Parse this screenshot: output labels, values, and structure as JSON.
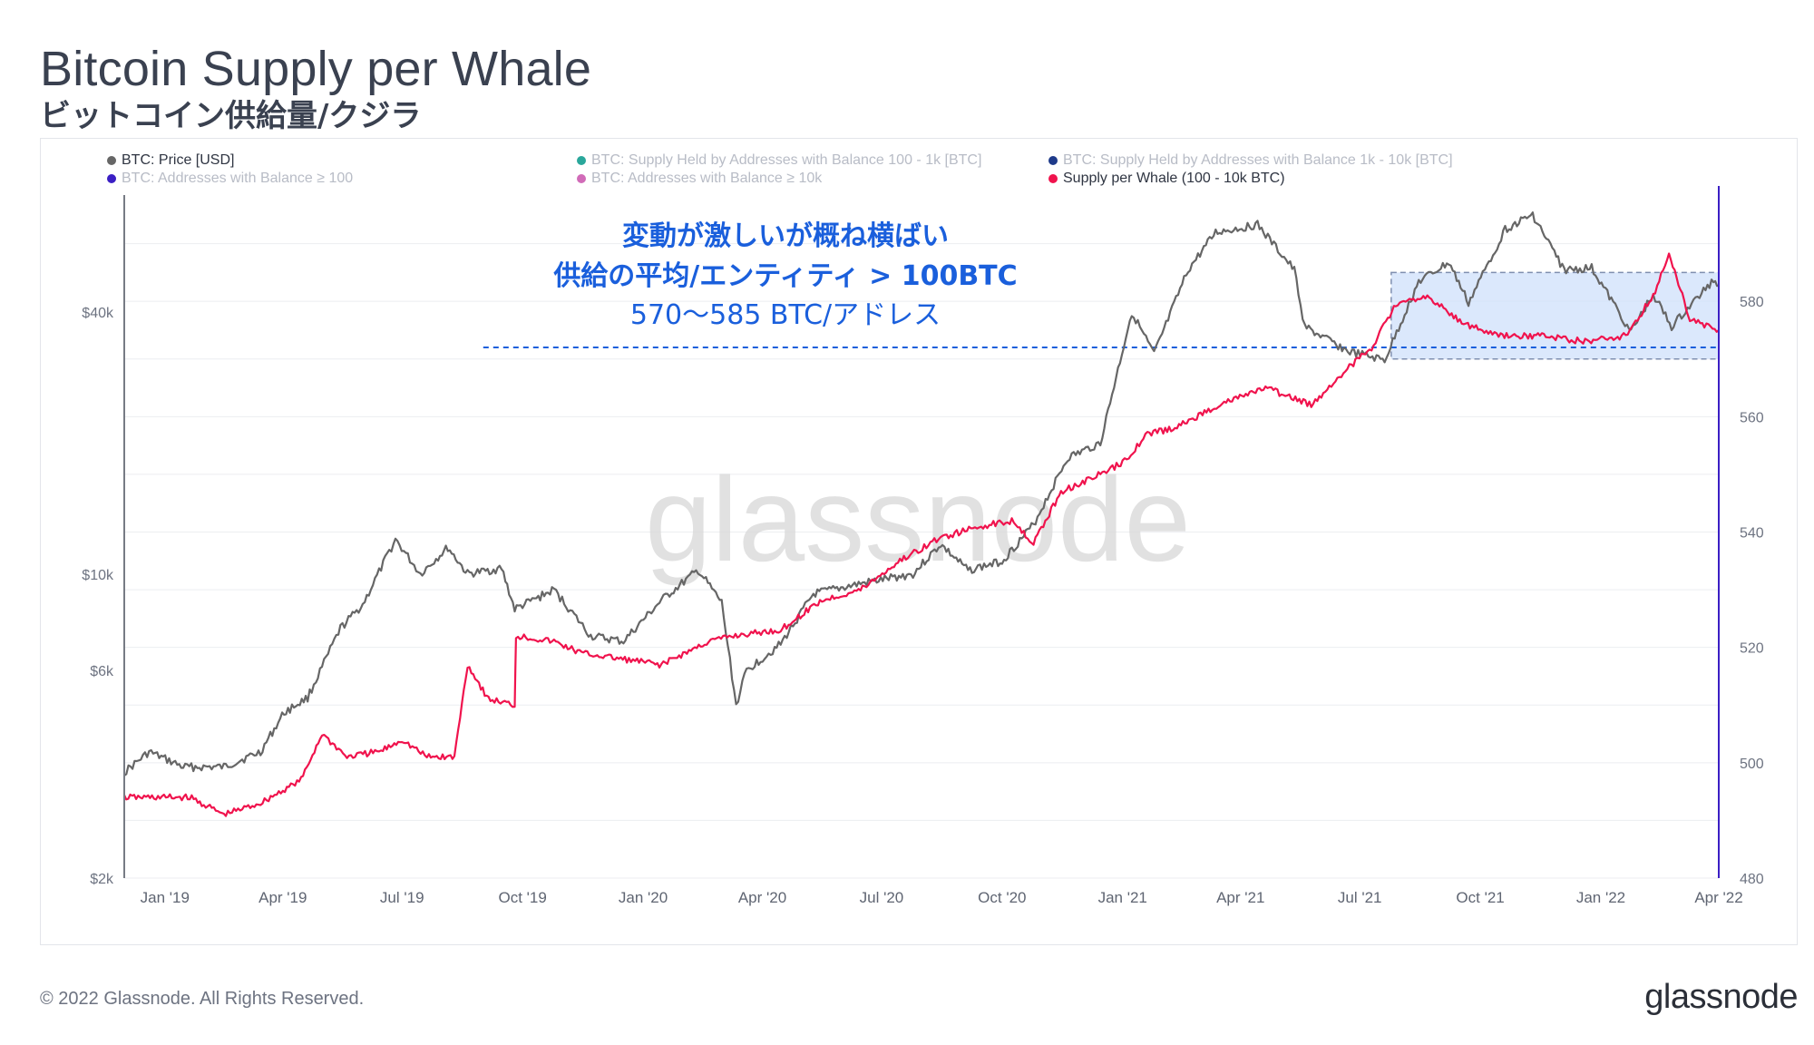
{
  "header": {
    "title": "Bitcoin Supply per Whale",
    "subtitle": "ビットコイン供給量/クジラ"
  },
  "legend": [
    {
      "label": "BTC: Price [USD]",
      "color": "#666666",
      "active": true
    },
    {
      "label": "BTC: Supply Held by Addresses with Balance 100 - 1k [BTC]",
      "color": "#2aa79b",
      "active": false
    },
    {
      "label": "BTC: Supply Held by Addresses with Balance 1k - 10k [BTC]",
      "color": "#1e3a8a",
      "active": false
    },
    {
      "label": "BTC: Addresses with Balance ≥ 100",
      "color": "#3b1fc4",
      "active": false
    },
    {
      "label": "BTC: Addresses with Balance ≥ 10k",
      "color": "#d16bb8",
      "active": false
    },
    {
      "label": "Supply per Whale (100 - 10k BTC)",
      "color": "#f0134d",
      "active": true
    }
  ],
  "annotation": {
    "line1": "変動が激しいが概ね横ばい",
    "line2": "供給の平均/エンティティ > 100BTC",
    "line3": "570〜585 BTC/アドレス",
    "color": "#1a5fdc"
  },
  "watermark": "glassnode",
  "footer": {
    "copyright": "© 2022 Glassnode. All Rights Reserved.",
    "brand": "glassnode"
  },
  "chart_data": {
    "type": "line",
    "x_ticks": [
      "Jan '19",
      "Apr '19",
      "Jul '19",
      "Oct '19",
      "Jan '20",
      "Apr '20",
      "Jul '20",
      "Oct '20",
      "Jan '21",
      "Apr '21",
      "Jul '21",
      "Oct '21",
      "Jan '22",
      "Apr '22"
    ],
    "x_range": [
      "2018-12-01",
      "2022-04-01"
    ],
    "y_left": {
      "scale": "log",
      "ticks": [
        "$2k",
        "$6k",
        "$10k",
        "$40k"
      ],
      "tick_values": [
        2000,
        6000,
        10000,
        40000
      ],
      "range": [
        2000,
        78000
      ]
    },
    "y_right": {
      "scale": "linear",
      "ticks": [
        "480",
        "500",
        "520",
        "540",
        "560",
        "580"
      ],
      "tick_values": [
        480,
        500,
        520,
        540,
        560,
        580
      ],
      "range": [
        480,
        600
      ]
    },
    "highlight_band": {
      "y_right_range": [
        570,
        585
      ],
      "x_range": [
        "2021-07-25",
        "2022-04-01"
      ]
    },
    "reference_line": {
      "y_right": 572,
      "x_range": [
        "2019-09-01",
        "2022-04-01"
      ]
    },
    "series": [
      {
        "name": "BTC: Price [USD]",
        "axis": "left",
        "color": "#666666",
        "x": [
          "2018-12-01",
          "2018-12-20",
          "2019-01-15",
          "2019-02-15",
          "2019-03-15",
          "2019-04-02",
          "2019-04-20",
          "2019-05-15",
          "2019-06-01",
          "2019-06-26",
          "2019-07-15",
          "2019-08-05",
          "2019-08-20",
          "2019-09-15",
          "2019-09-25",
          "2019-10-25",
          "2019-11-22",
          "2019-12-17",
          "2020-01-15",
          "2020-02-12",
          "2020-03-01",
          "2020-03-12",
          "2020-03-20",
          "2020-04-15",
          "2020-05-10",
          "2020-06-15",
          "2020-07-25",
          "2020-08-15",
          "2020-09-05",
          "2020-10-01",
          "2020-10-25",
          "2020-11-20",
          "2020-12-15",
          "2021-01-08",
          "2021-01-25",
          "2021-02-20",
          "2021-03-13",
          "2021-04-14",
          "2021-05-12",
          "2021-05-20",
          "2021-06-22",
          "2021-07-20",
          "2021-08-15",
          "2021-09-07",
          "2021-09-22",
          "2021-10-20",
          "2021-11-10",
          "2021-12-04",
          "2021-12-25",
          "2022-01-24",
          "2022-02-10",
          "2022-02-24",
          "2022-03-28",
          "2022-04-01"
        ],
        "values": [
          3500,
          3900,
          3600,
          3600,
          3900,
          4800,
          5200,
          7500,
          8500,
          12000,
          10000,
          11500,
          10000,
          10300,
          8300,
          9200,
          7200,
          7000,
          8700,
          10200,
          8600,
          5000,
          6000,
          6900,
          9000,
          9500,
          10000,
          11700,
          10200,
          10700,
          13000,
          18500,
          20000,
          40000,
          32000,
          50000,
          61000,
          63500,
          50000,
          37000,
          32500,
          31000,
          47000,
          52000,
          42000,
          62000,
          67000,
          50000,
          50500,
          36000,
          44000,
          37000,
          47500,
          46000
        ]
      },
      {
        "name": "Supply per Whale (100 - 10k BTC)",
        "axis": "right",
        "color": "#f0134d",
        "x": [
          "2018-12-01",
          "2019-01-20",
          "2019-02-15",
          "2019-03-15",
          "2019-04-15",
          "2019-05-01",
          "2019-05-20",
          "2019-06-15",
          "2019-07-01",
          "2019-07-20",
          "2019-08-10",
          "2019-08-20",
          "2019-09-05",
          "2019-09-25",
          "2019-09-26",
          "2019-10-25",
          "2019-11-15",
          "2019-12-15",
          "2020-01-15",
          "2020-02-20",
          "2020-03-10",
          "2020-04-15",
          "2020-05-15",
          "2020-06-15",
          "2020-07-15",
          "2020-08-15",
          "2020-09-15",
          "2020-10-10",
          "2020-10-25",
          "2020-11-15",
          "2020-12-15",
          "2021-01-01",
          "2021-01-20",
          "2021-02-10",
          "2021-03-15",
          "2021-04-20",
          "2021-05-25",
          "2021-06-20",
          "2021-07-10",
          "2021-07-27",
          "2021-08-20",
          "2021-09-20",
          "2021-10-15",
          "2021-11-20",
          "2021-12-20",
          "2022-01-20",
          "2022-02-10",
          "2022-02-22",
          "2022-03-10",
          "2022-04-01"
        ],
        "values": [
          494,
          494,
          491,
          493,
          497,
          505,
          501,
          502,
          504,
          501,
          501,
          517,
          511,
          510,
          522,
          521,
          519,
          518,
          517,
          521,
          522,
          523,
          528,
          530,
          535,
          539,
          541,
          542,
          538,
          547,
          550,
          552,
          557,
          558,
          562,
          565,
          562,
          568,
          572,
          579,
          581,
          576,
          574,
          574,
          573,
          574,
          581,
          588,
          577,
          575
        ]
      }
    ]
  }
}
